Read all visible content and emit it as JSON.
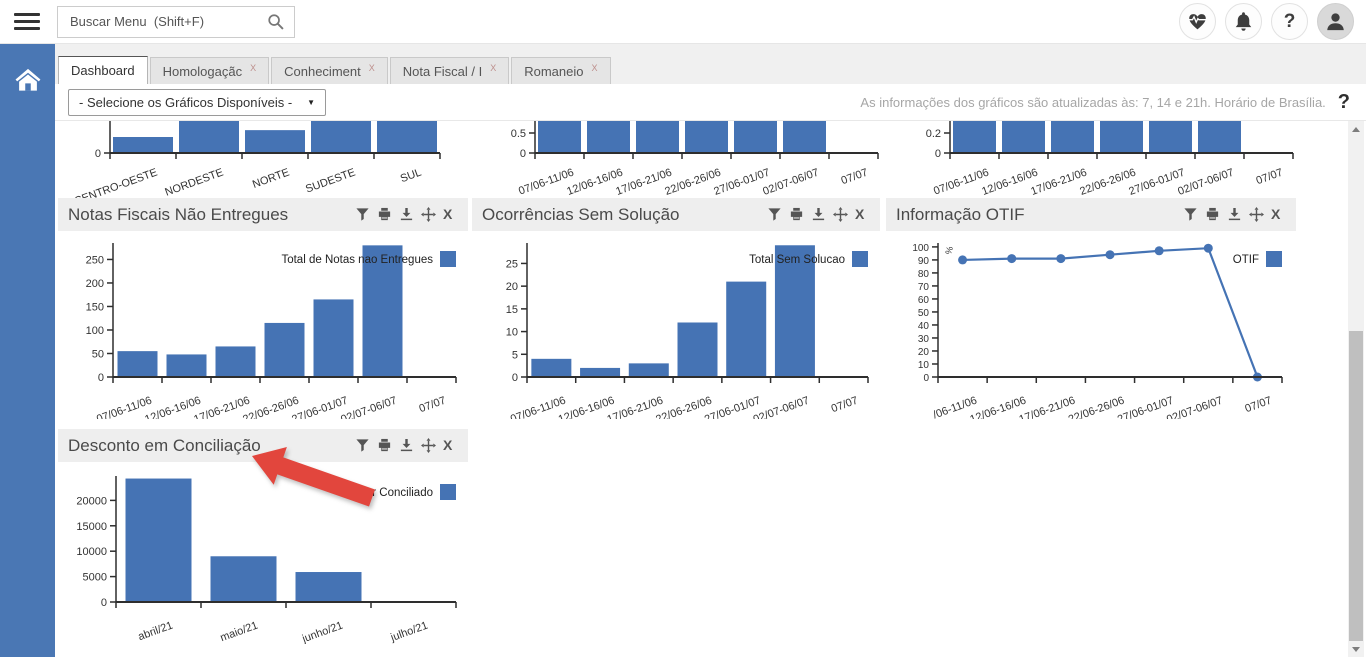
{
  "topbar": {
    "search_placeholder": "Buscar Menu  (Shift+F)",
    "help_label": "?"
  },
  "tabs": {
    "close_glyph": "X",
    "items": [
      {
        "label": "Dashboard",
        "active": true,
        "closable": false
      },
      {
        "label": "Homologaçãc",
        "active": false,
        "closable": true
      },
      {
        "label": "Conheciment",
        "active": false,
        "closable": true
      },
      {
        "label": "Nota Fiscal / I",
        "active": false,
        "closable": true
      },
      {
        "label": "Romaneio",
        "active": false,
        "closable": true
      }
    ]
  },
  "controls": {
    "select_label": "- Selecione os Gráficos Disponíveis -",
    "info_text": "As informações dos gráficos são atualizadas às: 7, 14 e 21h. Horário de Brasília.",
    "help_label": "?"
  },
  "panels": {
    "tools": [
      "filter",
      "print",
      "download",
      "move",
      "close"
    ]
  },
  "colors": {
    "chart_blue": "#4573b4",
    "sidebar_blue": "#4a77b4",
    "arrow_red": "#e2463d",
    "axis": "#2e2e2e"
  },
  "chart_data": [
    {
      "id": "regioes",
      "type": "bar",
      "title": "",
      "partial": true,
      "categories": [
        "CENTRO-OESTE",
        "NORDESTE",
        "NORTE",
        "SUDESTE",
        "SUL"
      ],
      "values": [
        1.4,
        3,
        2,
        3,
        3
      ],
      "yticks": [
        0
      ],
      "ylim_visible": [
        0,
        2.8
      ]
    },
    {
      "id": "parcial1",
      "type": "bar",
      "title": "",
      "partial": true,
      "categories": [
        "07/06-11/06",
        "12/06-16/06",
        "17/06-21/06",
        "22/06-26/06",
        "27/06-01/07",
        "02/07-06/07",
        "07/07"
      ],
      "values": [
        1,
        1,
        1,
        1,
        1,
        1,
        null
      ],
      "yticks": [
        0,
        0.5
      ],
      "ylim_visible": [
        0,
        0.8
      ]
    },
    {
      "id": "parcial2",
      "type": "bar",
      "title": "",
      "partial": true,
      "categories": [
        "07/06-11/06",
        "12/06-16/06",
        "17/06-21/06",
        "22/06-26/06",
        "27/06-01/07",
        "02/07-06/07",
        "07/07"
      ],
      "values": [
        0.4,
        0.4,
        0.4,
        0.4,
        0.4,
        0.4,
        null
      ],
      "yticks": [
        0,
        0.2
      ],
      "ylim_visible": [
        0,
        0.32
      ]
    },
    {
      "id": "notas",
      "type": "bar",
      "title": "Notas Fiscais Não Entregues",
      "legend": "Total de Notas nao Entregues",
      "legend_position": "top-right",
      "categories": [
        "07/06-11/06",
        "12/06-16/06",
        "17/06-21/06",
        "22/06-26/06",
        "27/06-01/07",
        "02/07-06/07",
        "07/07"
      ],
      "values": [
        55,
        48,
        65,
        115,
        165,
        280,
        null
      ],
      "yticks": [
        0,
        50,
        100,
        150,
        200,
        250
      ],
      "ylim": [
        0,
        285
      ]
    },
    {
      "id": "ocorrencias",
      "type": "bar",
      "title": "Ocorrências Sem Solução",
      "legend": "Total Sem Solucao",
      "legend_position": "top-right",
      "categories": [
        "07/06-11/06",
        "12/06-16/06",
        "17/06-21/06",
        "22/06-26/06",
        "27/06-01/07",
        "02/07-06/07",
        "07/07"
      ],
      "values": [
        4,
        2,
        3,
        12,
        21,
        29,
        null
      ],
      "yticks": [
        0,
        5,
        10,
        15,
        20,
        25
      ],
      "ylim": [
        0,
        29.5
      ]
    },
    {
      "id": "otif",
      "type": "line",
      "title": "Informação OTIF",
      "legend": "OTIF",
      "legend_position": "top-right",
      "ylabel": "%",
      "categories": [
        "/06-11/06",
        "12/06-16/06",
        "17/06-21/06",
        "22/06-26/06",
        "27/06-01/07",
        "02/07-06/07",
        "07/07"
      ],
      "values": [
        90,
        91,
        91,
        94,
        97,
        99,
        0
      ],
      "yticks": [
        0,
        10,
        20,
        30,
        40,
        50,
        60,
        70,
        80,
        90,
        100
      ],
      "ylim": [
        0,
        103
      ]
    },
    {
      "id": "desconto",
      "type": "bar",
      "title": "Desconto em Conciliação",
      "legend": "Valor Conciliado",
      "legend_position": "top-right",
      "categories": [
        "abril/21",
        "maio/21",
        "junho/21",
        "julho/21"
      ],
      "values": [
        24300,
        9000,
        5900,
        null
      ],
      "yticks": [
        0,
        5000,
        10000,
        15000,
        20000
      ],
      "ylim": [
        0,
        24800
      ],
      "annotation": "red arrow pointing to panel title"
    }
  ]
}
